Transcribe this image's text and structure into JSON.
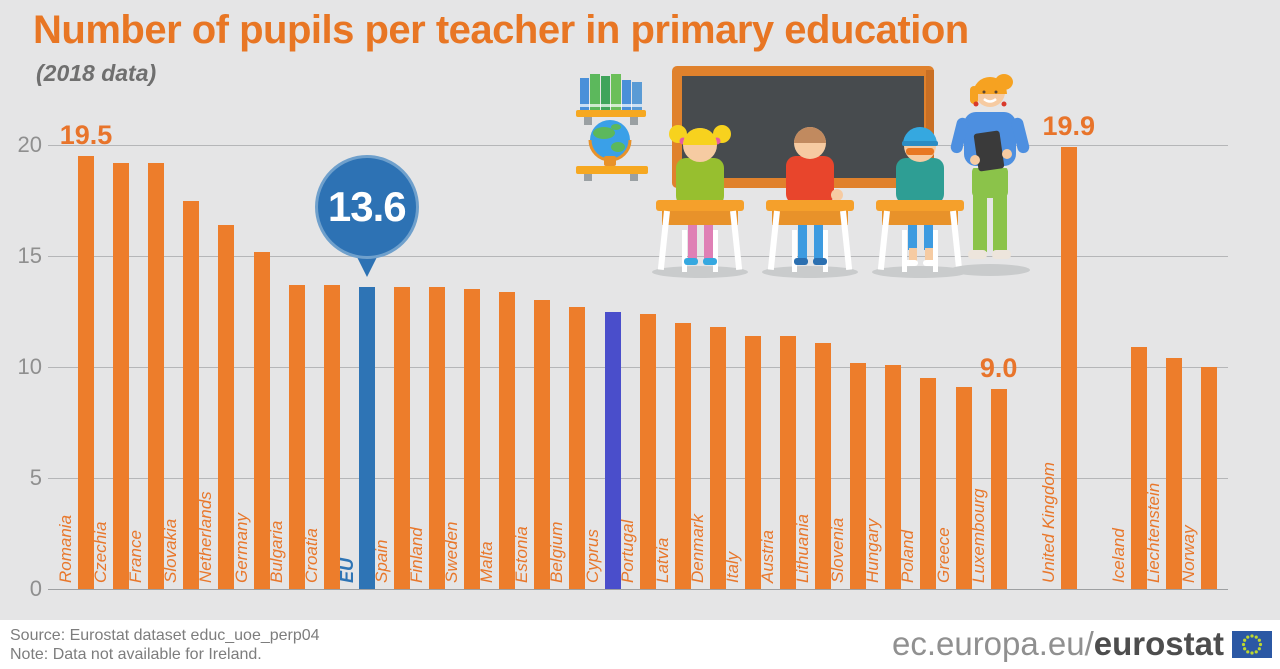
{
  "header": {
    "title": "Number of pupils per teacher in primary education",
    "subtitle": "(2018 data)"
  },
  "colors": {
    "background": "#E5E5E6",
    "bar": "#ED7D2B",
    "eu_bar": "#2E74B5",
    "cyprus_bar": "#4A4ECB",
    "title_orange": "#E87624",
    "value_label_orange": "#E8742B",
    "gridline": "#B5B6B8",
    "axis_text": "#8F8F8F",
    "footer_text": "#7D7D7D",
    "flag_blue": "#2B58A4",
    "flag_stars": "#BED730"
  },
  "chart_data": {
    "type": "bar",
    "title": "Number of pupils per teacher in primary education",
    "subtitle": "(2018 data)",
    "ylabel": "",
    "xlabel": "",
    "ylim": [
      0,
      20
    ],
    "yticks": [
      0,
      5,
      10,
      15,
      20
    ],
    "grid": true,
    "bars": [
      {
        "label": "Romania",
        "value": 19.5,
        "value_label": "19.5"
      },
      {
        "label": "Czechia",
        "value": 19.2
      },
      {
        "label": "France",
        "value": 19.2
      },
      {
        "label": "Slovakia",
        "value": 17.5
      },
      {
        "label": "Netherlands",
        "value": 16.4
      },
      {
        "label": "Germany",
        "value": 15.2
      },
      {
        "label": "Bulgaria",
        "value": 13.7
      },
      {
        "label": "Croatia",
        "value": 13.7
      },
      {
        "label": "EU",
        "value": 13.6,
        "color": "eu",
        "callout": "13.6"
      },
      {
        "label": "Spain",
        "value": 13.6
      },
      {
        "label": "Finland",
        "value": 13.6
      },
      {
        "label": "Sweden",
        "value": 13.5
      },
      {
        "label": "Malta",
        "value": 13.4
      },
      {
        "label": "Estonia",
        "value": 13.0
      },
      {
        "label": "Belgium",
        "value": 12.7
      },
      {
        "label": "Cyprus",
        "value": 12.5,
        "color": "cyprus"
      },
      {
        "label": "Portugal",
        "value": 12.4
      },
      {
        "label": "Latvia",
        "value": 12.0
      },
      {
        "label": "Denmark",
        "value": 11.8
      },
      {
        "label": "Italy",
        "value": 11.4
      },
      {
        "label": "Austria",
        "value": 11.4
      },
      {
        "label": "Lithuania",
        "value": 11.1
      },
      {
        "label": "Slovenia",
        "value": 10.2
      },
      {
        "label": "Hungary",
        "value": 10.1
      },
      {
        "label": "Poland",
        "value": 9.5
      },
      {
        "label": "Greece",
        "value": 9.1
      },
      {
        "label": "Luxembourg",
        "value": 9.0,
        "value_label": "9.0"
      },
      {
        "label": "United Kingdom",
        "value": 19.9,
        "value_label": "19.9",
        "gap_before": 1
      },
      {
        "label": "Iceland",
        "value": 10.9,
        "gap_before": 1
      },
      {
        "label": "Liechtenstein",
        "value": 10.4
      },
      {
        "label": "Norway",
        "value": 10.0
      }
    ]
  },
  "footer": {
    "source": "Source: Eurostat dataset educ_uoe_perp04",
    "note": "Note: Data not available for Ireland.",
    "brand_prefix": "ec.europa.eu/",
    "brand_bold": "eurostat"
  }
}
